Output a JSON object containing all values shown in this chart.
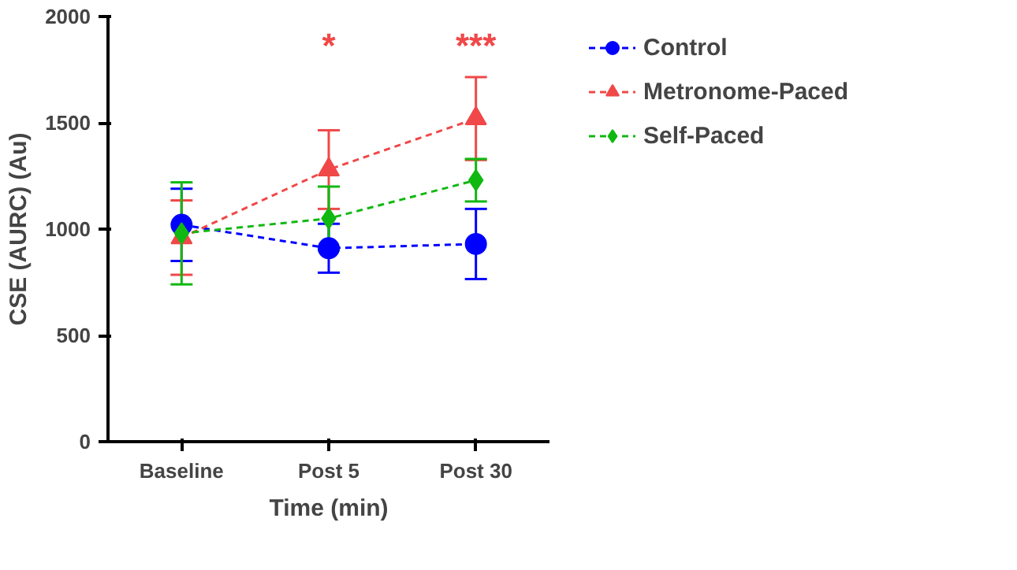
{
  "chart_data": {
    "type": "line",
    "xlabel": "Time (min)",
    "ylabel": "CSE (AURC) (Au)",
    "categories": [
      "Baseline",
      "Post 5",
      "Post 30"
    ],
    "ylim": [
      0,
      2000
    ],
    "yticks": [
      0,
      500,
      1000,
      1500,
      2000
    ],
    "grid": false,
    "legend": "right",
    "line_style": "dashed",
    "series": [
      {
        "name": "Control",
        "color": "#0000ff",
        "marker": "circle",
        "values": [
          1020,
          910,
          930
        ],
        "errors": [
          170,
          115,
          165
        ]
      },
      {
        "name": "Metronome-Paced",
        "color": "#f04848",
        "marker": "triangle",
        "values": [
          960,
          1280,
          1520
        ],
        "errors": [
          175,
          185,
          195
        ]
      },
      {
        "name": "Self-Paced",
        "color": "#11b811",
        "marker": "diamond",
        "values": [
          980,
          1050,
          1230
        ],
        "errors": [
          240,
          150,
          100
        ]
      }
    ],
    "annotations": [
      "*",
      "***"
    ]
  }
}
